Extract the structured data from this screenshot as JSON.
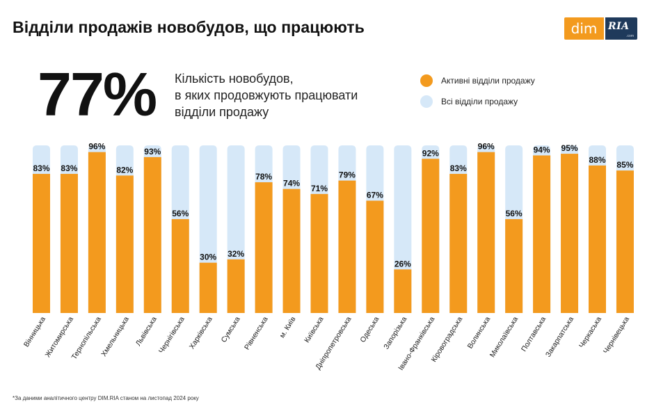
{
  "header": {
    "title": "Відділи продажів новобудов, що працюють",
    "logo": {
      "left_text": "dim",
      "right_text": "RIA",
      "right_subtext": ".com"
    }
  },
  "summary": {
    "value": "77%",
    "description_lines": [
      "Кількість новобудов,",
      "в яких продовжують працювати",
      "відділи продажу"
    ]
  },
  "colors": {
    "active": "#f39a1e",
    "all": "#d6e8f8",
    "text": "#111111"
  },
  "chart_data": {
    "type": "bar",
    "categories": [
      "Вінницька",
      "Житомирська",
      "Тернопільська",
      "Хмельницька",
      "Львівська",
      "Чернігівська",
      "Харківська",
      "Сумська",
      "Рівненська",
      "м. Київ",
      "Київська",
      "Дніпропетровська",
      "Одеська",
      "Запорізька",
      "Івано-Франківська",
      "Кіровоградська",
      "Волинська",
      "Миколаївська",
      "Полтавська",
      "Закарпатська",
      "Черкаська",
      "Чернівецька"
    ],
    "series": [
      {
        "name": "Активні відділи продажу",
        "values": [
          83,
          83,
          96,
          82,
          93,
          56,
          30,
          32,
          78,
          74,
          71,
          79,
          67,
          26,
          92,
          83,
          96,
          56,
          94,
          95,
          88,
          85
        ]
      },
      {
        "name": "Всі відділи продажу",
        "values": [
          100,
          100,
          100,
          100,
          100,
          100,
          100,
          100,
          100,
          100,
          100,
          100,
          100,
          100,
          100,
          100,
          100,
          100,
          100,
          100,
          100,
          100
        ]
      }
    ],
    "data_labels": [
      "83%",
      "83%",
      "96%",
      "82%",
      "93%",
      "56%",
      "30%",
      "32%",
      "78%",
      "74%",
      "71%",
      "79%",
      "67%",
      "26%",
      "92%",
      "83%",
      "96%",
      "56%",
      "94%",
      "95%",
      "88%",
      "85%"
    ],
    "legend_position": "top-right",
    "ylim": [
      0,
      100
    ],
    "grid": false,
    "title": "",
    "xlabel": "",
    "ylabel": ""
  },
  "footnote": "*За даними аналітичного центру DIM.RIA станом на листопад 2024 року"
}
